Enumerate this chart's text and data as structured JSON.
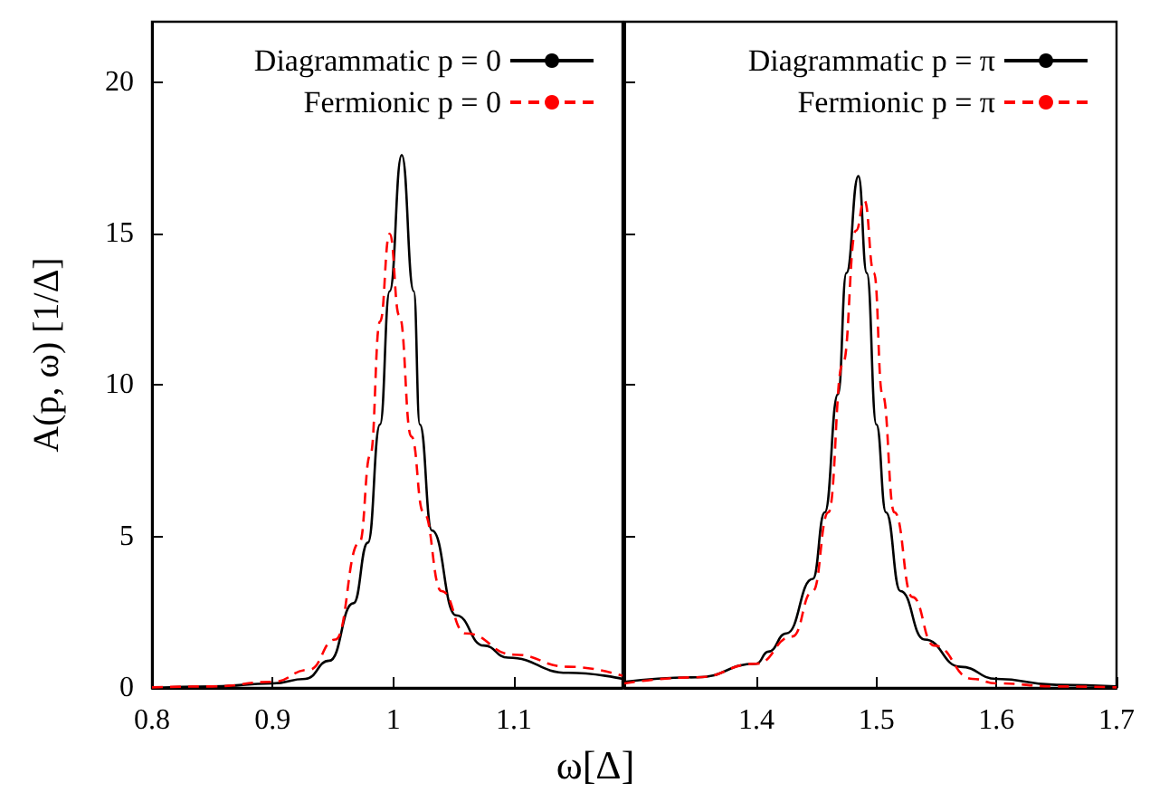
{
  "chart_data": [
    {
      "type": "line",
      "ylabel": "A(p, ω) [1/Δ]",
      "xlabel": "ω[Δ]",
      "xlim": [
        0.8,
        1.19
      ],
      "xticks": [
        0.8,
        0.9,
        1,
        1.1
      ],
      "ylim": [
        0,
        22
      ],
      "yticks": [
        0,
        5,
        10,
        15,
        20
      ],
      "grid": false,
      "legend": "top right",
      "marker": "none",
      "series": [
        {
          "name": "Diagrammatic p = 0",
          "color": "#000000",
          "line_style": "solid",
          "x": [
            0.8,
            0.85,
            0.9,
            0.927,
            0.947,
            0.967,
            0.979,
            0.989,
            0.997,
            1.007,
            1.017,
            1.022,
            1.032,
            1.052,
            1.075,
            1.095,
            1.145,
            1.19
          ],
          "values": [
            0,
            0.05,
            0.15,
            0.3,
            0.9,
            2.8,
            4.8,
            8.7,
            13.1,
            17.6,
            13.1,
            8.7,
            5.2,
            2.4,
            1.4,
            1.0,
            0.5,
            0.3
          ]
        },
        {
          "name": "Fermionic p = 0",
          "color": "#ff0000",
          "line_style": "dashed",
          "x": [
            0.8,
            0.85,
            0.9,
            0.93,
            0.952,
            0.972,
            0.981,
            0.989,
            0.997,
            1.005,
            1.015,
            1.025,
            1.04,
            1.06,
            1.1,
            1.145,
            1.19
          ],
          "values": [
            0.02,
            0.05,
            0.2,
            0.6,
            1.6,
            4.8,
            7.7,
            12.1,
            15.0,
            12.3,
            8.3,
            5.8,
            3.2,
            1.8,
            1.1,
            0.7,
            0.4
          ]
        }
      ]
    },
    {
      "type": "line",
      "xlim": [
        1.29,
        1.7
      ],
      "xticks": [
        1.4,
        1.5,
        1.6,
        1.7
      ],
      "ylim": [
        0,
        22
      ],
      "yticks": [
        0,
        5,
        10,
        15,
        20
      ],
      "tick_labels": "x",
      "grid": false,
      "legend": "top right",
      "marker": "none",
      "series": [
        {
          "name": "Diagrammatic p = π",
          "color": "#000000",
          "line_style": "solid",
          "x": [
            1.29,
            1.35,
            1.4,
            1.41,
            1.425,
            1.447,
            1.457,
            1.468,
            1.475,
            1.485,
            1.492,
            1.5,
            1.508,
            1.52,
            1.54,
            1.57,
            1.6,
            1.65,
            1.7
          ],
          "values": [
            0.2,
            0.35,
            0.8,
            1.2,
            1.8,
            3.6,
            5.8,
            9.7,
            13.7,
            16.9,
            13.7,
            8.7,
            5.8,
            3.2,
            1.6,
            0.7,
            0.3,
            0.1,
            0.05
          ]
        },
        {
          "name": "Fermionic p = π",
          "color": "#ff0000",
          "line_style": "dashed",
          "x": [
            1.29,
            1.35,
            1.4,
            1.43,
            1.447,
            1.46,
            1.472,
            1.483,
            1.49,
            1.498,
            1.505,
            1.515,
            1.53,
            1.548,
            1.58,
            1.6,
            1.65,
            1.7
          ],
          "values": [
            0.15,
            0.35,
            0.8,
            1.7,
            3.2,
            5.8,
            10.7,
            15.1,
            16.1,
            13.7,
            9.7,
            5.8,
            3.0,
            1.4,
            0.3,
            0.15,
            0.05,
            0.02
          ]
        }
      ]
    }
  ]
}
